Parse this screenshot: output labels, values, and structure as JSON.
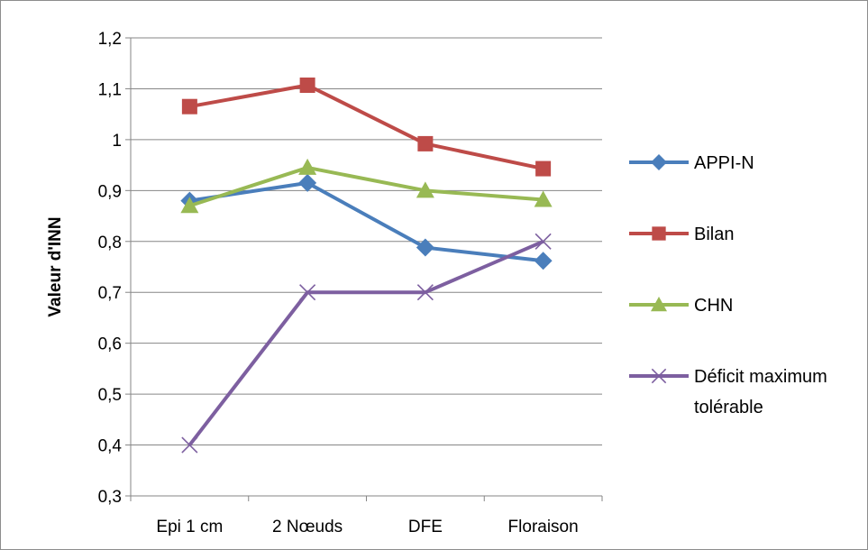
{
  "chart_data": {
    "type": "line",
    "title": "",
    "xlabel": "",
    "ylabel": "Valeur d'INN",
    "categories": [
      "Epi 1 cm",
      "2 Nœuds",
      "DFE",
      "Floraison"
    ],
    "ylim": [
      0.3,
      1.2
    ],
    "yticks": [
      "1,2",
      "1,1",
      "1",
      "0,9",
      "0,8",
      "0,7",
      "0,6",
      "0,5",
      "0,4",
      "0,3"
    ],
    "grid": true,
    "legend_position": "right",
    "series": [
      {
        "name": "APPI-N",
        "values": [
          0.88,
          0.915,
          0.788,
          0.762
        ],
        "color": "#4a7ebb",
        "marker": "diamond"
      },
      {
        "name": "Bilan",
        "values": [
          1.065,
          1.107,
          0.992,
          0.943
        ],
        "color": "#be4b48",
        "marker": "square"
      },
      {
        "name": "CHN",
        "values": [
          0.87,
          0.945,
          0.9,
          0.882
        ],
        "color": "#98b954",
        "marker": "triangle"
      },
      {
        "name": "Déficit maximum tolérable",
        "name_lines": [
          "Déficit maximum",
          "tolérable"
        ],
        "values": [
          0.4,
          0.7,
          0.7,
          0.8
        ],
        "color": "#7d5fa0",
        "marker": "x"
      }
    ]
  }
}
